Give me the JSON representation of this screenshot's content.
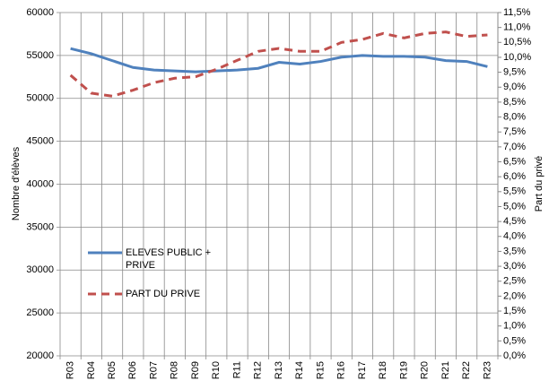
{
  "chart_data": {
    "type": "line",
    "ylabel": "Nombre d'élèves",
    "y2label": "Part du privé",
    "categories": [
      "R03",
      "R04",
      "R05",
      "R06",
      "R07",
      "R08",
      "R09",
      "R10",
      "R11",
      "R12",
      "R13",
      "R14",
      "R15",
      "R16",
      "R17",
      "R18",
      "R19",
      "R20",
      "R21",
      "R22",
      "R23"
    ],
    "series": [
      {
        "name": "ELEVES PUBLIC + PRIVE",
        "color": "#4f81bd",
        "line_style": "solid",
        "axis": "y",
        "values": [
          55800,
          55200,
          54400,
          53600,
          53300,
          53200,
          53100,
          53200,
          53300,
          53500,
          54200,
          54000,
          54300,
          54800,
          55000,
          54900,
          54900,
          54800,
          54400,
          54300,
          53700
        ]
      },
      {
        "name": "PART DU PRIVE",
        "color": "#c0504d",
        "line_style": "dashed",
        "axis": "y2",
        "values": [
          9.4,
          8.8,
          8.7,
          8.9,
          9.15,
          9.3,
          9.35,
          9.6,
          9.9,
          10.2,
          10.3,
          10.2,
          10.2,
          10.5,
          10.6,
          10.8,
          10.65,
          10.8,
          10.85,
          10.7,
          10.75
        ]
      }
    ],
    "ylim": [
      20000,
      60000
    ],
    "yticks": [
      20000,
      25000,
      30000,
      35000,
      40000,
      45000,
      50000,
      55000,
      60000
    ],
    "y2lim": [
      0,
      11.5
    ],
    "y2ticks": [
      {
        "value": 0,
        "label": "0,0%"
      },
      {
        "value": 0.5,
        "label": "0,5%"
      },
      {
        "value": 1,
        "label": "1,0%"
      },
      {
        "value": 1.5,
        "label": "1,5%"
      },
      {
        "value": 2,
        "label": "2,0%"
      },
      {
        "value": 2.5,
        "label": "2,5%"
      },
      {
        "value": 3,
        "label": "3,0%"
      },
      {
        "value": 3.5,
        "label": "3,5%"
      },
      {
        "value": 4,
        "label": "4,0%"
      },
      {
        "value": 4.5,
        "label": "4,5%"
      },
      {
        "value": 5,
        "label": "5,0%"
      },
      {
        "value": 5.5,
        "label": "5,5%"
      },
      {
        "value": 6,
        "label": "6,0%"
      },
      {
        "value": 6.5,
        "label": "6,5%"
      },
      {
        "value": 7,
        "label": "7,0%"
      },
      {
        "value": 7.5,
        "label": "7,5%"
      },
      {
        "value": 8,
        "label": "8,0%"
      },
      {
        "value": 8.5,
        "label": "8,5%"
      },
      {
        "value": 9,
        "label": "9,0%"
      },
      {
        "value": 9.5,
        "label": "9,5%"
      },
      {
        "value": 10,
        "label": "10,0%"
      },
      {
        "value": 10.5,
        "label": "10,5%"
      },
      {
        "value": 11,
        "label": "11,0%"
      },
      {
        "value": 11.5,
        "label": "11,5%"
      }
    ],
    "grid": true
  }
}
